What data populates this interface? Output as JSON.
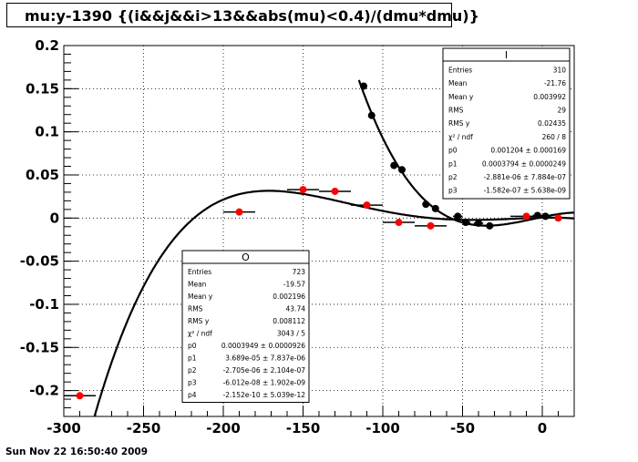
{
  "title": "mu:y-1390 {(i&&j&&i>13&&abs(mu)<0.4)/(dmu*dmu)}",
  "timestamp": "Sun Nov 22 16:50:40 2009",
  "stats_I": {
    "name": "I",
    "rows": [
      {
        "label": "Entries",
        "value": "310"
      },
      {
        "label": "Mean",
        "value": "-21.76"
      },
      {
        "label": "Mean y",
        "value": "0.003992"
      },
      {
        "label": "RMS",
        "value": "29"
      },
      {
        "label": "RMS y",
        "value": "0.02435"
      },
      {
        "label": "χ² / ndf",
        "value": "260 / 8"
      },
      {
        "label": "p0",
        "value": "0.001204 ± 0.000169"
      },
      {
        "label": "p1",
        "value": "0.0003794 ± 0.0000249"
      },
      {
        "label": "p2",
        "value": "-2.881e-06 ± 7.884e-07"
      },
      {
        "label": "p3",
        "value": "-1.582e-07 ± 5.638e-09"
      }
    ]
  },
  "stats_O": {
    "name": "O",
    "rows": [
      {
        "label": "Entries",
        "value": "723"
      },
      {
        "label": "Mean",
        "value": "-19.57"
      },
      {
        "label": "Mean y",
        "value": "0.002196"
      },
      {
        "label": "RMS",
        "value": "43.74"
      },
      {
        "label": "RMS y",
        "value": "0.008112"
      },
      {
        "label": "χ² / ndf",
        "value": "3043 / 5"
      },
      {
        "label": "p0",
        "value": "0.0003949 ± 0.0000926"
      },
      {
        "label": "p1",
        "value": "3.689e-05 ± 7.837e-06"
      },
      {
        "label": "p2",
        "value": "-2.705e-06 ± 2.104e-07"
      },
      {
        "label": "p3",
        "value": "-6.012e-08 ± 1.902e-09"
      },
      {
        "label": "p4",
        "value": "-2.152e-10 ± 5.039e-12"
      }
    ]
  },
  "chart_data": {
    "type": "scatter",
    "title": "mu:y-1390 {(i&&j&&i>13&&abs(mu)<0.4)/(dmu*dmu)}",
    "xlim": [
      -300,
      20
    ],
    "ylim": [
      -0.23,
      0.2
    ],
    "grid": true,
    "x_ticks": [
      -300,
      -250,
      -200,
      -150,
      -100,
      -50,
      0
    ],
    "x_tick_labels": [
      "-300",
      "-250",
      "-200",
      "-150",
      "-100",
      "-50",
      "0"
    ],
    "y_ticks": [
      -0.2,
      -0.15,
      -0.1,
      -0.05,
      0,
      0.05,
      0.1,
      0.15,
      0.2
    ],
    "y_tick_labels": [
      "-0.2",
      "-0.15",
      "-0.1",
      "-0.05",
      "0",
      "0.05",
      "0.1",
      "0.15",
      "0.2"
    ],
    "series": [
      {
        "name": "I",
        "color": "#000000",
        "points": [
          {
            "x": -112,
            "y": 0.153,
            "ex": 2
          },
          {
            "x": -107,
            "y": 0.119,
            "ex": 2
          },
          {
            "x": -93,
            "y": 0.061,
            "ex": 2
          },
          {
            "x": -88,
            "y": 0.056,
            "ex": 2
          },
          {
            "x": -73,
            "y": 0.016,
            "ex": 2
          },
          {
            "x": -67,
            "y": 0.011,
            "ex": 2
          },
          {
            "x": -53,
            "y": 0.002,
            "ex": 3
          },
          {
            "x": -48,
            "y": -0.005,
            "ex": 3
          },
          {
            "x": -40,
            "y": -0.006,
            "ex": 3
          },
          {
            "x": -33,
            "y": -0.009,
            "ex": 3
          },
          {
            "x": -3,
            "y": 0.003,
            "ex": 3
          },
          {
            "x": 2,
            "y": 0.002,
            "ex": 3
          }
        ],
        "fit": {
          "p0": 0.001204,
          "p1": 0.0003794,
          "p2": -2.881e-06,
          "p3": -1.582e-07,
          "x_range": [
            -115,
            20
          ]
        }
      },
      {
        "name": "O",
        "color": "#ff0000",
        "points": [
          {
            "x": -290,
            "y": -0.206,
            "ex": 10
          },
          {
            "x": -190,
            "y": 0.007,
            "ex": 10
          },
          {
            "x": -150,
            "y": 0.033,
            "ex": 10
          },
          {
            "x": -130,
            "y": 0.031,
            "ex": 10
          },
          {
            "x": -110,
            "y": 0.015,
            "ex": 10
          },
          {
            "x": -90,
            "y": -0.005,
            "ex": 10
          },
          {
            "x": -70,
            "y": -0.009,
            "ex": 10
          },
          {
            "x": -10,
            "y": 0.002,
            "ex": 10
          },
          {
            "x": 10,
            "y": 0.0,
            "ex": 10
          }
        ],
        "fit": {
          "p0": 0.0003949,
          "p1": 3.689e-05,
          "p2": -2.705e-06,
          "p3": -6.012e-08,
          "p4": -2.152e-10,
          "x_range": [
            -285,
            20
          ]
        }
      }
    ]
  }
}
